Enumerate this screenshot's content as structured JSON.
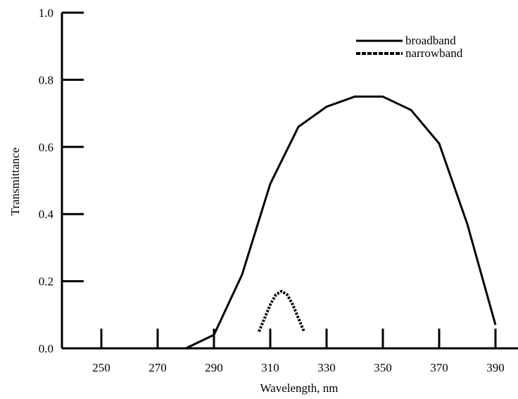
{
  "chart_data": {
    "type": "line",
    "title": "",
    "xlabel": "Wavelength, nm",
    "ylabel": "Transmittance",
    "xlim": [
      236,
      398
    ],
    "ylim": [
      0,
      1.0
    ],
    "x_ticks": [
      250,
      270,
      290,
      310,
      330,
      350,
      370,
      390
    ],
    "y_ticks": [
      0.0,
      0.2,
      0.4,
      0.6,
      0.8,
      1.0
    ],
    "x_tick_labels": [
      "250",
      "270",
      "290",
      "310",
      "330",
      "350",
      "370",
      "390"
    ],
    "y_tick_labels": [
      "0.0",
      "0.2",
      "0.4",
      "0.6",
      "0.8",
      "1.0"
    ],
    "grid": false,
    "legend_position": "top-right",
    "series": [
      {
        "name": "broadband",
        "style": "solid",
        "color": "#000000",
        "x": [
          280,
          290,
          300,
          310,
          320,
          330,
          340,
          350,
          360,
          370,
          380,
          390
        ],
        "y": [
          0.0,
          0.04,
          0.22,
          0.49,
          0.66,
          0.72,
          0.75,
          0.75,
          0.71,
          0.61,
          0.37,
          0.07
        ]
      },
      {
        "name": "narrowband",
        "style": "dashed",
        "color": "#000000",
        "x": [
          306,
          308,
          310,
          312,
          314,
          316,
          318,
          320,
          322
        ],
        "y": [
          0.05,
          0.09,
          0.13,
          0.16,
          0.17,
          0.16,
          0.13,
          0.09,
          0.05
        ]
      }
    ]
  }
}
